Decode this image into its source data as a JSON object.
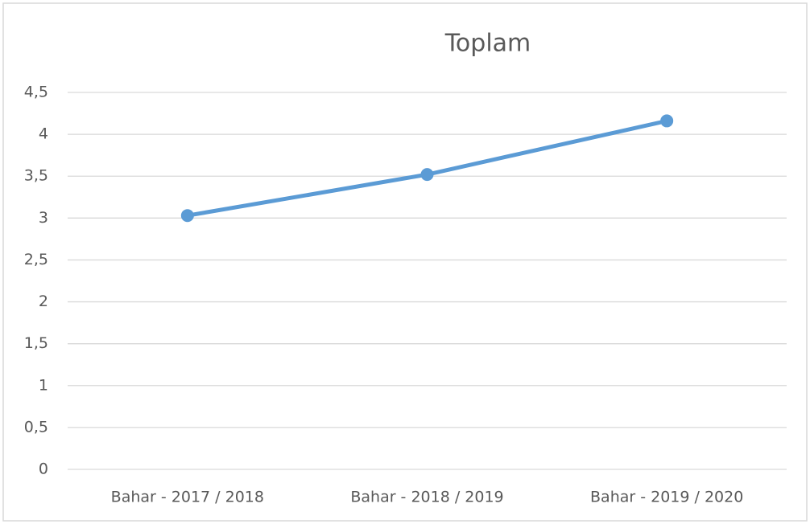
{
  "chart_data": {
    "type": "line",
    "title": "Toplam",
    "categories": [
      "Bahar - 2017 / 2018",
      "Bahar - 2018 / 2019",
      "Bahar - 2019 / 2020"
    ],
    "series": [
      {
        "name": "Toplam",
        "color": "#5b9bd5",
        "values": [
          3.03,
          3.52,
          4.16
        ]
      }
    ],
    "ylim": [
      0,
      4.5
    ],
    "yticks": [
      0,
      {
        "value": 0.5,
        "label": "0,5"
      },
      1,
      {
        "value": 1.5,
        "label": "1,5"
      },
      2,
      {
        "value": 2.5,
        "label": "2,5"
      },
      3,
      {
        "value": 3.5,
        "label": "3,5"
      },
      4,
      {
        "value": 4.5,
        "label": "4,5"
      }
    ],
    "grid": true
  }
}
